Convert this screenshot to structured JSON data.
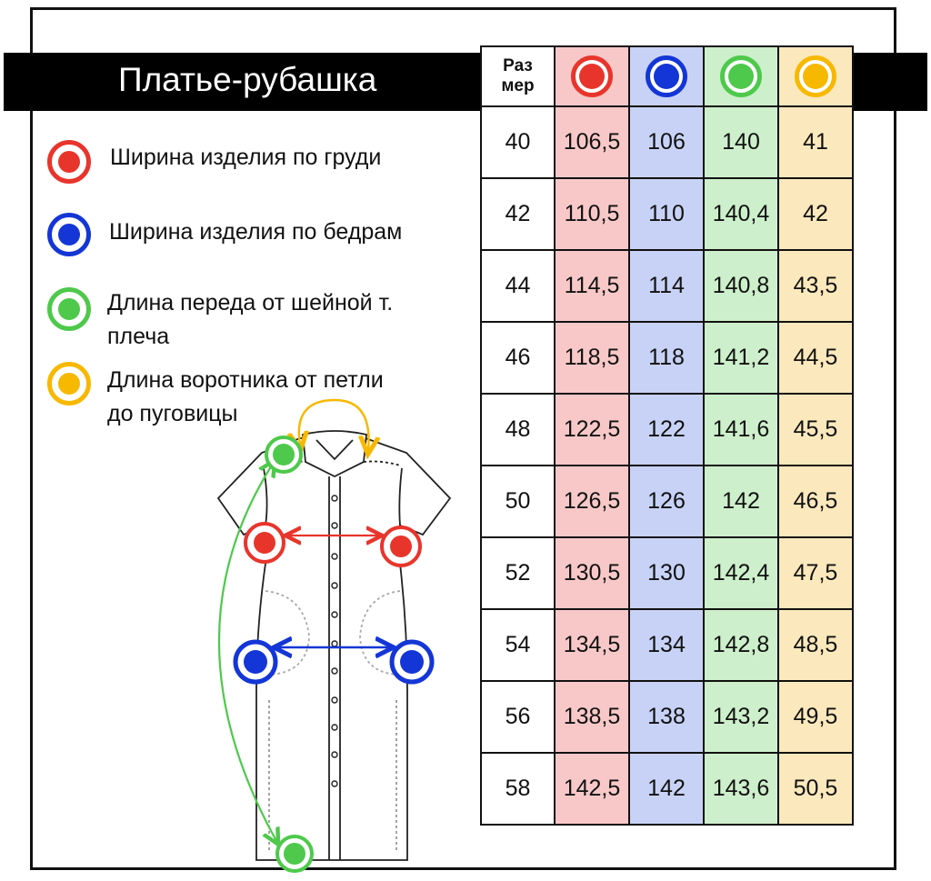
{
  "title": "Платье-рубашка",
  "colors": {
    "red": "#e8352c",
    "blue": "#1436d6",
    "green": "#4ec94b",
    "yellow": "#f7b800"
  },
  "legend": [
    {
      "color": "red",
      "text": "Ширина изделия по груди"
    },
    {
      "color": "blue",
      "text": "Ширина изделия по бедрам"
    },
    {
      "color": "green",
      "text_line1": "Длина переда от шейной т.",
      "text_line2": "плеча"
    },
    {
      "color": "yellow",
      "text_line1": "Длина воротника от петли",
      "text_line2": "до пуговицы"
    }
  ],
  "table": {
    "size_header_line1": "Раз",
    "size_header_line2": "мер",
    "rows": [
      {
        "size": "40",
        "red": "106,5",
        "blue": "106",
        "green": "140",
        "yellow": "41"
      },
      {
        "size": "42",
        "red": "110,5",
        "blue": "110",
        "green": "140,4",
        "yellow": "42"
      },
      {
        "size": "44",
        "red": "114,5",
        "blue": "114",
        "green": "140,8",
        "yellow": "43,5"
      },
      {
        "size": "46",
        "red": "118,5",
        "blue": "118",
        "green": "141,2",
        "yellow": "44,5"
      },
      {
        "size": "48",
        "red": "122,5",
        "blue": "122",
        "green": "141,6",
        "yellow": "45,5"
      },
      {
        "size": "50",
        "red": "126,5",
        "blue": "126",
        "green": "142",
        "yellow": "46,5"
      },
      {
        "size": "52",
        "red": "130,5",
        "blue": "130",
        "green": "142,4",
        "yellow": "47,5"
      },
      {
        "size": "54",
        "red": "134,5",
        "blue": "134",
        "green": "142,8",
        "yellow": "48,5"
      },
      {
        "size": "56",
        "red": "138,5",
        "blue": "138",
        "green": "143,2",
        "yellow": "49,5"
      },
      {
        "size": "58",
        "red": "142,5",
        "blue": "142",
        "green": "143,6",
        "yellow": "50,5"
      }
    ]
  }
}
